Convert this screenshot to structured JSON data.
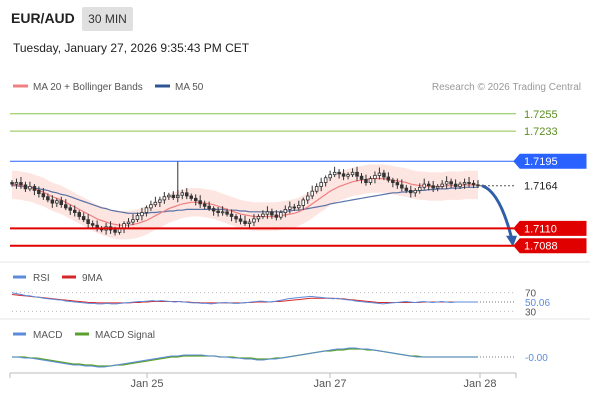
{
  "header": {
    "symbol": "EUR/AUD",
    "timeframe": "30 MIN",
    "datetime": "Tuesday, January 27, 2026 9:35:43 PM CET"
  },
  "legend": {
    "ma20_label": "MA 20 + Bollinger Bands",
    "ma50_label": "MA 50",
    "ma20_color": "#f08080",
    "ma50_color": "#2f5597",
    "copyright": "Research © 2026 Trading Central"
  },
  "rsi_legend": {
    "rsi_label": "RSI",
    "ma_label": "9MA",
    "rsi_color": "#5b8bd9",
    "ma_color": "#d62728"
  },
  "macd_legend": {
    "macd_label": "MACD",
    "signal_label": "MACD Signal",
    "macd_color": "#5b8bd9",
    "signal_color": "#5aa02c"
  },
  "colors": {
    "resistance_green": "#8bc34a",
    "resistance_blue": "#2962ff",
    "support_red": "#e00000",
    "arrow_blue": "#2f5fa8",
    "candle": "#333333"
  },
  "chart_data": [
    {
      "type": "candlestick",
      "title": "EUR/AUD 30 MIN",
      "x_tick_labels": [
        "Jan 25",
        "Jan 27",
        "Jan 28"
      ],
      "y_range": [
        1.7075,
        1.7275
      ],
      "levels": [
        {
          "value": "1.7255",
          "kind": "resistance",
          "color": "#8bc34a"
        },
        {
          "value": "1.7233",
          "kind": "resistance",
          "color": "#8bc34a"
        },
        {
          "value": "1.7195",
          "kind": "resistance",
          "color": "#2962ff"
        },
        {
          "value": "1.7164",
          "kind": "last_price",
          "color": "#333333"
        },
        {
          "value": "1.7110",
          "kind": "support",
          "color": "#e00000"
        },
        {
          "value": "1.7088",
          "kind": "support",
          "color": "#e00000"
        }
      ],
      "close_series": [
        1.7166,
        1.7168,
        1.7165,
        1.716,
        1.7163,
        1.7158,
        1.7154,
        1.715,
        1.7146,
        1.7142,
        1.7145,
        1.714,
        1.7136,
        1.7133,
        1.713,
        1.7125,
        1.7121,
        1.7116,
        1.7114,
        1.711,
        1.7108,
        1.7112,
        1.7108,
        1.7105,
        1.711,
        1.7116,
        1.7118,
        1.7121,
        1.7126,
        1.713,
        1.7136,
        1.714,
        1.7143,
        1.7146,
        1.715,
        1.7152,
        1.7149,
        1.7152,
        1.7155,
        1.7151,
        1.7148,
        1.7145,
        1.7141,
        1.7138,
        1.7135,
        1.7132,
        1.713,
        1.7131,
        1.7128,
        1.7125,
        1.7122,
        1.7119,
        1.7116,
        1.7118,
        1.7122,
        1.7125,
        1.7128,
        1.7131,
        1.7127,
        1.7124,
        1.713,
        1.7134,
        1.7137,
        1.7136,
        1.7139,
        1.7146,
        1.7151,
        1.7157,
        1.7163,
        1.7168,
        1.7174,
        1.7178,
        1.7181,
        1.7179,
        1.7176,
        1.7178,
        1.7181,
        1.7176,
        1.7172,
        1.7168,
        1.7173,
        1.7177,
        1.718,
        1.7175,
        1.7171,
        1.7168,
        1.7165,
        1.7161,
        1.7158,
        1.7155,
        1.7158,
        1.7162,
        1.7166,
        1.7164,
        1.7161,
        1.7163,
        1.7166,
        1.7169,
        1.7166,
        1.7163,
        1.7166,
        1.7168,
        1.7167,
        1.7165,
        1.7164
      ],
      "ma20": [
        1.7165,
        1.7165,
        1.7164,
        1.7163,
        1.7162,
        1.716,
        1.7158,
        1.7156,
        1.7153,
        1.715,
        1.7148,
        1.7146,
        1.7143,
        1.714,
        1.7137,
        1.7134,
        1.7131,
        1.7128,
        1.7125,
        1.7122,
        1.712,
        1.7118,
        1.7116,
        1.7115,
        1.7114,
        1.7114,
        1.7114,
        1.7115,
        1.7116,
        1.7118,
        1.712,
        1.7123,
        1.7126,
        1.7129,
        1.7132,
        1.7135,
        1.7137,
        1.7139,
        1.7141,
        1.7142,
        1.7143,
        1.7143,
        1.7143,
        1.7142,
        1.7141,
        1.714,
        1.7138,
        1.7136,
        1.7134,
        1.7132,
        1.713,
        1.7128,
        1.7127,
        1.7126,
        1.7125,
        1.7125,
        1.7125,
        1.7125,
        1.7125,
        1.7125,
        1.7126,
        1.7127,
        1.7128,
        1.7129,
        1.7131,
        1.7134,
        1.7137,
        1.7141,
        1.7145,
        1.7149,
        1.7153,
        1.7157,
        1.716,
        1.7163,
        1.7165,
        1.7167,
        1.7169,
        1.717,
        1.7171,
        1.7172,
        1.7173,
        1.7173,
        1.7173,
        1.7173,
        1.7172,
        1.7171,
        1.717,
        1.7169,
        1.7168,
        1.7166,
        1.7165,
        1.7164,
        1.7164,
        1.7163,
        1.7163,
        1.7163,
        1.7163,
        1.7164,
        1.7164,
        1.7164,
        1.7164,
        1.7165,
        1.7165,
        1.7165,
        1.7165
      ],
      "ma50": [
        1.7164,
        1.7164,
        1.7163,
        1.7163,
        1.7162,
        1.7161,
        1.716,
        1.7159,
        1.7158,
        1.7156,
        1.7155,
        1.7153,
        1.7152,
        1.715,
        1.7148,
        1.7146,
        1.7144,
        1.7142,
        1.714,
        1.7138,
        1.7136,
        1.7135,
        1.7133,
        1.7132,
        1.7131,
        1.713,
        1.7129,
        1.7129,
        1.7129,
        1.7129,
        1.7129,
        1.713,
        1.713,
        1.7131,
        1.7131,
        1.7132,
        1.7132,
        1.7133,
        1.7133,
        1.7134,
        1.7134,
        1.7134,
        1.7134,
        1.7134,
        1.7134,
        1.7134,
        1.7134,
        1.7134,
        1.7133,
        1.7133,
        1.7133,
        1.7132,
        1.7132,
        1.7131,
        1.7131,
        1.7131,
        1.7131,
        1.7131,
        1.7131,
        1.7131,
        1.7131,
        1.7132,
        1.7132,
        1.7133,
        1.7133,
        1.7134,
        1.7135,
        1.7136,
        1.7137,
        1.7138,
        1.7139,
        1.7141,
        1.7142,
        1.7143,
        1.7144,
        1.7145,
        1.7146,
        1.7147,
        1.7148,
        1.7149,
        1.715,
        1.7151,
        1.7152,
        1.7153,
        1.7154,
        1.7155,
        1.7155,
        1.7156,
        1.7156,
        1.7157,
        1.7157,
        1.7158,
        1.7158,
        1.7159,
        1.7159,
        1.716,
        1.716,
        1.716,
        1.7161,
        1.7161,
        1.7161,
        1.7162,
        1.7162,
        1.7162,
        1.7162
      ],
      "bollinger_halfwidth": 0.0018,
      "projection": {
        "from": 1.7164,
        "to": 1.7088
      }
    },
    {
      "type": "line",
      "title": "RSI",
      "y_tick_labels": [
        "70",
        "30"
      ],
      "y_range": [
        20,
        80
      ],
      "last_value": "50.06",
      "series": [
        {
          "name": "RSI",
          "values": [
            70,
            68,
            66,
            64,
            63,
            61,
            60,
            58,
            57,
            56,
            55,
            54,
            52,
            51,
            50,
            49,
            48,
            47,
            47,
            46,
            46,
            47,
            46,
            46,
            47,
            48,
            49,
            50,
            51,
            51,
            52,
            53,
            52,
            53,
            52,
            51,
            50,
            51,
            50,
            49,
            48,
            48,
            47,
            47,
            46,
            47,
            48,
            49,
            48,
            47,
            47,
            48,
            49,
            50,
            51,
            52,
            51,
            50,
            51,
            53,
            55,
            57,
            58,
            59,
            60,
            61,
            62,
            61,
            60,
            59,
            58,
            57,
            58,
            56,
            55,
            54,
            52,
            51,
            50,
            49,
            48,
            47,
            46,
            47,
            48,
            49,
            50,
            51,
            50,
            49,
            50,
            51,
            50,
            49,
            50,
            51,
            50,
            49,
            50,
            50,
            50,
            50,
            50,
            50
          ]
        },
        {
          "name": "9MA",
          "values": [
            66,
            65,
            64,
            63,
            62,
            61,
            60,
            59,
            58,
            57,
            56,
            55,
            54,
            53,
            52,
            51,
            50,
            49,
            49,
            48,
            48,
            48,
            48,
            48,
            48,
            48,
            48,
            49,
            49,
            50,
            50,
            51,
            51,
            51,
            51,
            51,
            51,
            51,
            50,
            50,
            49,
            49,
            48,
            48,
            48,
            48,
            48,
            48,
            48,
            48,
            48,
            48,
            49,
            49,
            50,
            50,
            50,
            50,
            51,
            51,
            52,
            53,
            54,
            55,
            56,
            57,
            58,
            58,
            58,
            58,
            58,
            58,
            57,
            57,
            56,
            55,
            54,
            53,
            52,
            51,
            50,
            49,
            49,
            49,
            49,
            49,
            49,
            49,
            49,
            49,
            49,
            50,
            50,
            50,
            50,
            50,
            50,
            50,
            50,
            50,
            50,
            50,
            50,
            50
          ]
        }
      ]
    },
    {
      "type": "line",
      "title": "MACD",
      "y_range": [
        -0.0015,
        0.0015
      ],
      "last_value": "-0.00",
      "series": [
        {
          "name": "MACD",
          "values": [
            0,
            0,
            -0.0001,
            -0.0001,
            -0.0002,
            -0.0003,
            -0.0004,
            -0.0005,
            -0.0006,
            -0.0007,
            -0.0008,
            -0.0008,
            -0.0009,
            -0.0009,
            -0.001,
            -0.001,
            -0.0009,
            -0.0008,
            -0.0007,
            -0.0006,
            -0.0005,
            -0.0004,
            -0.0003,
            -0.0002,
            -0.0001,
            0,
            0.0001,
            0.0001,
            0.0002,
            0.0002,
            0.0002,
            0.0002,
            0.0001,
            0.0001,
            0,
            0,
            -0.0001,
            -0.0001,
            -0.0002,
            -0.0002,
            -0.0003,
            -0.0003,
            -0.0002,
            -0.0002,
            -0.0001,
            0,
            0.0001,
            0.0002,
            0.0003,
            0.0004,
            0.0005,
            0.0006,
            0.0007,
            0.0008,
            0.0008,
            0.0009,
            0.0009,
            0.0008,
            0.0008,
            0.0007,
            0.0006,
            0.0005,
            0.0004,
            0.0003,
            0.0002,
            0.0001,
            0,
            0,
            0,
            0,
            0,
            0,
            0,
            0,
            0,
            0,
            0
          ]
        },
        {
          "name": "MACD Signal",
          "values": [
            0,
            0,
            0,
            -0.0001,
            -0.0001,
            -0.0002,
            -0.0003,
            -0.0004,
            -0.0005,
            -0.0006,
            -0.0007,
            -0.0007,
            -0.0008,
            -0.0008,
            -0.0009,
            -0.0009,
            -0.0009,
            -0.0008,
            -0.0008,
            -0.0007,
            -0.0006,
            -0.0005,
            -0.0004,
            -0.0003,
            -0.0002,
            -0.0001,
            0,
            0,
            0.0001,
            0.0001,
            0.0001,
            0.0001,
            0.0001,
            0.0001,
            0,
            0,
            0,
            -0.0001,
            -0.0001,
            -0.0001,
            -0.0002,
            -0.0002,
            -0.0002,
            -0.0001,
            -0.0001,
            0,
            0.0001,
            0.0002,
            0.0003,
            0.0004,
            0.0005,
            0.0006,
            0.0006,
            0.0007,
            0.0007,
            0.0008,
            0.0008,
            0.0008,
            0.0007,
            0.0007,
            0.0006,
            0.0005,
            0.0004,
            0.0003,
            0.0002,
            0.0001,
            0.0001,
            0,
            0,
            0,
            0,
            0,
            0,
            0,
            0,
            0,
            0
          ]
        }
      ]
    }
  ]
}
